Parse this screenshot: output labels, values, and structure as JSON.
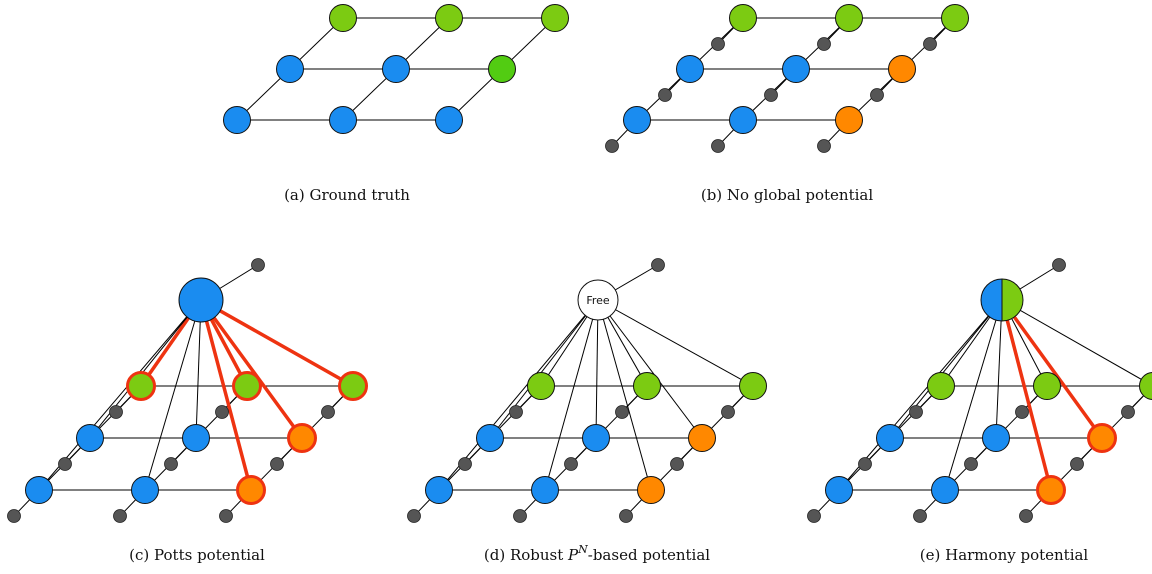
{
  "colors": {
    "blue": "#1a8cf0",
    "green": "#7ccb12",
    "bright_green": "#52cc12",
    "orange": "#ff8800",
    "red_edge": "#ee3311",
    "observation": "#555555",
    "free_fill": "#ffffff",
    "edge": "#000000"
  },
  "panels": [
    {
      "id": "a",
      "caption": "(a) Ground truth",
      "observations": false,
      "global_node": "none",
      "grid": [
        [
          "green",
          "green",
          "green"
        ],
        [
          "blue",
          "blue",
          "bright_green"
        ],
        [
          "blue",
          "blue",
          "blue"
        ]
      ]
    },
    {
      "id": "b",
      "caption": "(b) No global potential",
      "observations": true,
      "global_node": "none",
      "grid": [
        [
          "green",
          "green",
          "green"
        ],
        [
          "blue",
          "blue",
          "orange"
        ],
        [
          "blue",
          "blue",
          "orange"
        ]
      ]
    },
    {
      "id": "c",
      "caption": "(c) Potts potential",
      "observations": true,
      "global_node": "blue",
      "grid": [
        [
          "green",
          "green",
          "green"
        ],
        [
          "blue",
          "blue",
          "orange"
        ],
        [
          "blue",
          "blue",
          "orange"
        ]
      ],
      "penalized": [
        [
          0,
          0
        ],
        [
          0,
          1
        ],
        [
          0,
          2
        ],
        [
          1,
          2
        ],
        [
          2,
          2
        ]
      ]
    },
    {
      "id": "d",
      "caption": "(d) Robust P^N-based potential",
      "caption_parts": {
        "before": "(d) Robust ",
        "var": "P",
        "sup": "N",
        "after": "-based potential"
      },
      "observations": true,
      "global_node": "free",
      "global_label": "Free",
      "grid": [
        [
          "green",
          "green",
          "green"
        ],
        [
          "blue",
          "blue",
          "orange"
        ],
        [
          "blue",
          "blue",
          "orange"
        ]
      ],
      "penalized": []
    },
    {
      "id": "e",
      "caption": "(e) Harmony potential",
      "observations": true,
      "global_node": "split",
      "grid": [
        [
          "green",
          "green",
          "green"
        ],
        [
          "blue",
          "blue",
          "orange"
        ],
        [
          "blue",
          "blue",
          "orange"
        ]
      ],
      "penalized": [
        [
          1,
          2
        ],
        [
          2,
          2
        ]
      ]
    }
  ]
}
